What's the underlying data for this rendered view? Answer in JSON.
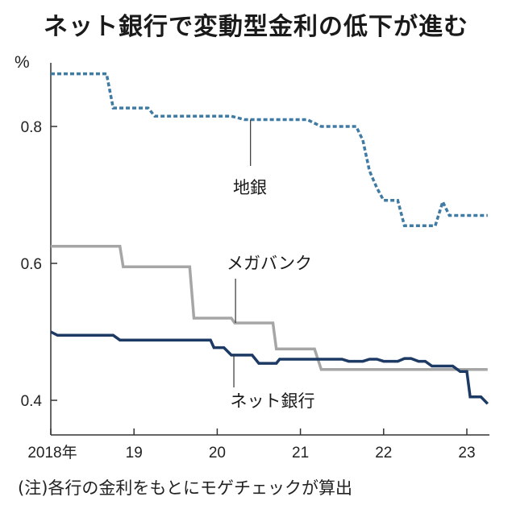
{
  "title": "ネット銀行で変動型金利の低下が進む",
  "note": "(注)各行の金利をもとにモゲチェックが算出",
  "chart_data": {
    "type": "line",
    "y_unit": "%",
    "ylim": [
      0.35,
      0.92
    ],
    "yticks": [
      0.4,
      0.6,
      0.8
    ],
    "ytick_labels": [
      "0.4",
      "0.6",
      "0.8"
    ],
    "xlim": [
      2018,
      2023.33
    ],
    "xticks": [
      2018,
      2019,
      2020,
      2021,
      2022,
      2023
    ],
    "xtick_labels": [
      "2018年",
      "19",
      "20",
      "21",
      "22",
      "23"
    ],
    "grid": false,
    "series": [
      {
        "name": "地銀",
        "color": "#3f7ba3",
        "style": "dashed",
        "points": [
          [
            2018.0,
            0.877
          ],
          [
            2018.67,
            0.877
          ],
          [
            2018.75,
            0.827
          ],
          [
            2019.17,
            0.827
          ],
          [
            2019.25,
            0.815
          ],
          [
            2020.17,
            0.815
          ],
          [
            2020.33,
            0.81
          ],
          [
            2021.08,
            0.81
          ],
          [
            2021.25,
            0.8
          ],
          [
            2021.67,
            0.8
          ],
          [
            2021.75,
            0.78
          ],
          [
            2021.83,
            0.735
          ],
          [
            2021.92,
            0.71
          ],
          [
            2022.0,
            0.692
          ],
          [
            2022.17,
            0.692
          ],
          [
            2022.25,
            0.655
          ],
          [
            2022.62,
            0.655
          ],
          [
            2022.71,
            0.69
          ],
          [
            2022.79,
            0.67
          ],
          [
            2023.25,
            0.67
          ]
        ]
      },
      {
        "name": "メガバンク",
        "color": "#a6a6a6",
        "style": "solid",
        "points": [
          [
            2018.0,
            0.625
          ],
          [
            2018.83,
            0.625
          ],
          [
            2018.87,
            0.595
          ],
          [
            2019.67,
            0.595
          ],
          [
            2019.72,
            0.52
          ],
          [
            2020.17,
            0.52
          ],
          [
            2020.21,
            0.513
          ],
          [
            2020.67,
            0.513
          ],
          [
            2020.71,
            0.475
          ],
          [
            2021.17,
            0.475
          ],
          [
            2021.25,
            0.445
          ],
          [
            2023.25,
            0.445
          ]
        ]
      },
      {
        "name": "ネット銀行",
        "color": "#1c3a63",
        "style": "solid",
        "points": [
          [
            2018.0,
            0.5
          ],
          [
            2018.08,
            0.495
          ],
          [
            2018.75,
            0.495
          ],
          [
            2018.83,
            0.488
          ],
          [
            2019.92,
            0.488
          ],
          [
            2019.96,
            0.477
          ],
          [
            2020.08,
            0.477
          ],
          [
            2020.17,
            0.466
          ],
          [
            2020.42,
            0.466
          ],
          [
            2020.5,
            0.454
          ],
          [
            2020.71,
            0.454
          ],
          [
            2020.75,
            0.46
          ],
          [
            2020.83,
            0.46
          ],
          [
            2021.0,
            0.46
          ],
          [
            2021.5,
            0.46
          ],
          [
            2021.58,
            0.457
          ],
          [
            2021.75,
            0.457
          ],
          [
            2021.83,
            0.46
          ],
          [
            2021.92,
            0.46
          ],
          [
            2022.0,
            0.457
          ],
          [
            2022.17,
            0.457
          ],
          [
            2022.25,
            0.461
          ],
          [
            2022.33,
            0.461
          ],
          [
            2022.42,
            0.457
          ],
          [
            2022.5,
            0.457
          ],
          [
            2022.58,
            0.45
          ],
          [
            2022.83,
            0.45
          ],
          [
            2022.92,
            0.442
          ],
          [
            2023.0,
            0.442
          ],
          [
            2023.04,
            0.405
          ],
          [
            2023.17,
            0.405
          ],
          [
            2023.25,
            0.395
          ]
        ]
      }
    ],
    "annotations": [
      {
        "text": "地銀",
        "series": 0,
        "at_x": 2020.4,
        "anchor": 2020.4
      },
      {
        "text": "メガバンク",
        "series": 1,
        "at_x": 2020.22,
        "anchor": 2020.22
      },
      {
        "text": "ネット銀行",
        "series": 2,
        "at_x": 2020.2,
        "anchor": 2020.2
      }
    ]
  }
}
